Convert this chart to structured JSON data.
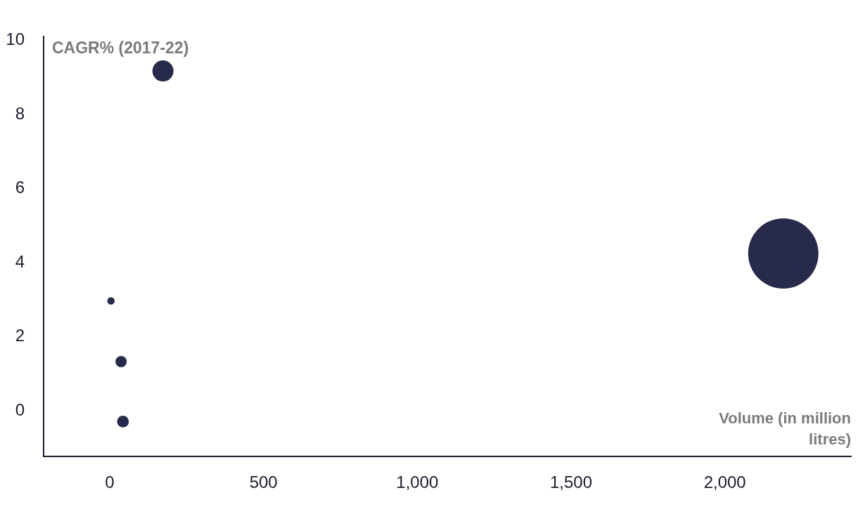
{
  "chart_data": {
    "type": "bubble",
    "xlabel": "Volume (in million litres)",
    "ylabel": "CAGR% (2017-22)",
    "x": [
      173,
      2190,
      4,
      37,
      43
    ],
    "values": [
      9.18,
      4.25,
      2.97,
      1.33,
      -0.29
    ],
    "sizes": [
      0.09,
      1,
      0.011,
      0.026,
      0.028
    ],
    "color": "#282a4b",
    "xlim": [
      -215,
      2410
    ],
    "ylim": [
      -1.23,
      10.11
    ],
    "xticks": [
      0,
      500,
      {
        "value": 1000,
        "label": "1,000"
      },
      {
        "value": 1500,
        "label": "1,500"
      },
      {
        "value": 2000,
        "label": "2,000"
      }
    ],
    "yticks": [
      0,
      2,
      4,
      6,
      8,
      10
    ]
  }
}
